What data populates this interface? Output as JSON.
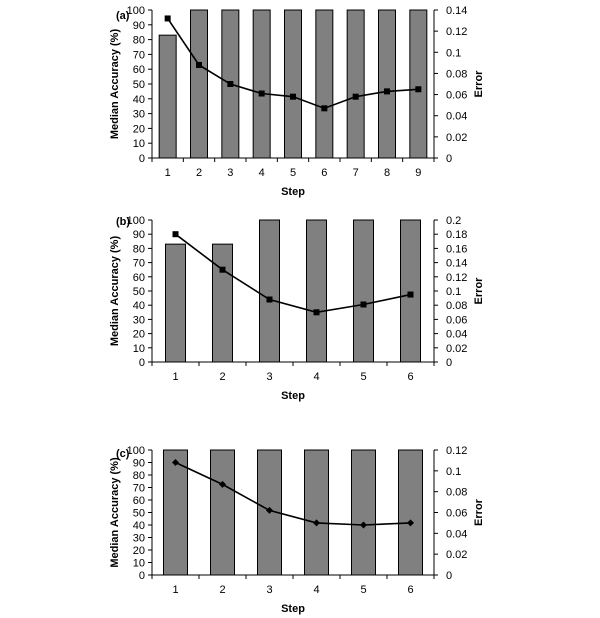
{
  "chart_data": [
    {
      "panel_label": "(a)",
      "type": "bar",
      "xlabel": "Step",
      "ylabel": "Median Accuracy (%)",
      "y2label": "Error",
      "categories": [
        "1",
        "2",
        "3",
        "4",
        "5",
        "6",
        "7",
        "8",
        "9"
      ],
      "ylim": [
        0,
        100
      ],
      "yticks": [
        "0",
        "10",
        "20",
        "30",
        "40",
        "50",
        "60",
        "70",
        "80",
        "90",
        "100"
      ],
      "y2lim": [
        0,
        0.14
      ],
      "y2ticks": [
        "0",
        "0.02",
        "0.04",
        "0.06",
        "0.08",
        "0.1",
        "0.12",
        "0.14"
      ],
      "series": [
        {
          "type": "bar",
          "axis": "left",
          "color": "#808080",
          "values": [
            83,
            100,
            100,
            100,
            100,
            100,
            100,
            100,
            100
          ]
        },
        {
          "type": "line",
          "axis": "right",
          "marker": "square",
          "color": "#000000",
          "values": [
            0.132,
            0.088,
            0.07,
            0.061,
            0.058,
            0.047,
            0.058,
            0.063,
            0.065
          ]
        }
      ]
    },
    {
      "panel_label": "(b)",
      "type": "bar",
      "xlabel": "Step",
      "ylabel": "Median Accuracy (%)",
      "y2label": "Error",
      "categories": [
        "1",
        "2",
        "3",
        "4",
        "5",
        "6"
      ],
      "ylim": [
        0,
        100
      ],
      "yticks": [
        "0",
        "10",
        "20",
        "30",
        "40",
        "50",
        "60",
        "70",
        "80",
        "90",
        "100"
      ],
      "y2lim": [
        0,
        0.2
      ],
      "y2ticks": [
        "0",
        "0.02",
        "0.04",
        "0.06",
        "0.08",
        "0.1",
        "0.12",
        "0.14",
        "0.16",
        "0.18",
        "0.2"
      ],
      "series": [
        {
          "type": "bar",
          "axis": "left",
          "color": "#808080",
          "values": [
            83,
            83,
            100,
            100,
            100,
            100
          ]
        },
        {
          "type": "line",
          "axis": "right",
          "marker": "square",
          "color": "#000000",
          "values": [
            0.18,
            0.13,
            0.088,
            0.07,
            0.081,
            0.095
          ]
        }
      ]
    },
    {
      "panel_label": "(c)",
      "type": "bar",
      "xlabel": "Step",
      "ylabel": "Median Accuracy (%)",
      "y2label": "Error",
      "categories": [
        "1",
        "2",
        "3",
        "4",
        "5",
        "6"
      ],
      "ylim": [
        0,
        100
      ],
      "yticks": [
        "0",
        "10",
        "20",
        "30",
        "40",
        "50",
        "60",
        "70",
        "80",
        "90",
        "100"
      ],
      "y2lim": [
        0,
        0.12
      ],
      "y2ticks": [
        "0",
        "0.02",
        "0.04",
        "0.06",
        "0.08",
        "0.1",
        "0.12"
      ],
      "series": [
        {
          "type": "bar",
          "axis": "left",
          "color": "#808080",
          "values": [
            100,
            100,
            100,
            100,
            100,
            100
          ]
        },
        {
          "type": "line",
          "axis": "right",
          "marker": "diamond",
          "color": "#000000",
          "values": [
            0.108,
            0.087,
            0.062,
            0.05,
            0.048,
            0.05
          ]
        }
      ]
    }
  ]
}
